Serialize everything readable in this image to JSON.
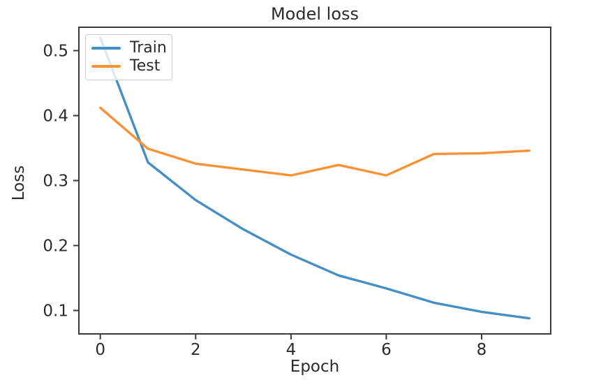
{
  "chart_data": {
    "type": "line",
    "title": "Model loss",
    "xlabel": "Epoch",
    "ylabel": "Loss",
    "x": [
      0,
      1,
      2,
      3,
      4,
      5,
      6,
      7,
      8,
      9
    ],
    "series": [
      {
        "name": "Train",
        "color": "#468fc4",
        "values": [
          0.52,
          0.328,
          0.27,
          0.225,
          0.186,
          0.154,
          0.134,
          0.112,
          0.098,
          0.088
        ]
      },
      {
        "name": "Test",
        "color": "#fd9135",
        "values": [
          0.412,
          0.349,
          0.326,
          0.317,
          0.308,
          0.324,
          0.308,
          0.341,
          0.342,
          0.346
        ]
      }
    ],
    "xticks": [
      0,
      2,
      4,
      6,
      8
    ],
    "yticks": [
      0.1,
      0.2,
      0.3,
      0.4,
      0.5
    ],
    "xlim": [
      -0.45,
      9.45
    ],
    "ylim": [
      0.064,
      0.536
    ],
    "grid": false,
    "legend_position": "upper-left"
  },
  "style": {
    "background": "#ffffff",
    "spine_color": "#3b3b3b",
    "text_color": "#2b2b2b",
    "legend_border_color": "#cccccc"
  }
}
